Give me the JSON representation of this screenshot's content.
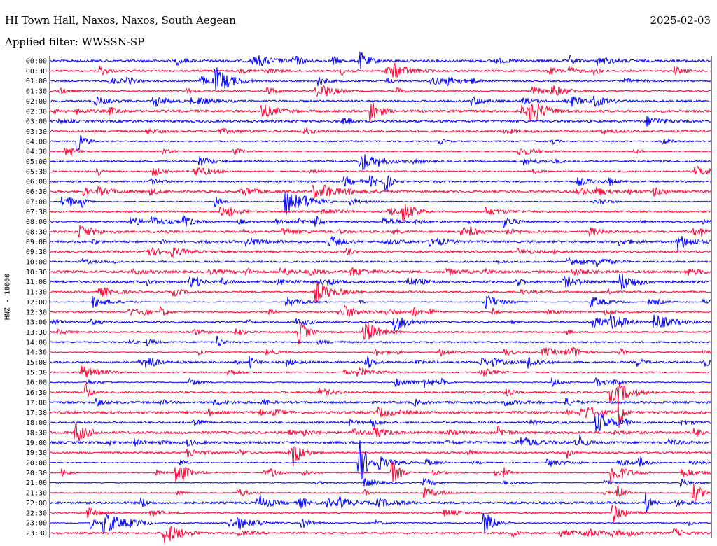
{
  "header": {
    "title": "HI Town Hall, Naxos, Naxos, South Aegean",
    "date": "2025-02-03",
    "filter": "Applied filter: WWSSN-SP"
  },
  "chart_data": {
    "type": "line",
    "ylabel": "HNZ - 10000",
    "colors": [
      "#0000ff",
      "#ff0033"
    ],
    "rows": [
      "00:00",
      "00:30",
      "01:00",
      "01:30",
      "02:00",
      "02:30",
      "03:00",
      "03:30",
      "04:00",
      "04:30",
      "05:00",
      "05:30",
      "06:00",
      "06:30",
      "07:00",
      "07:30",
      "08:00",
      "08:30",
      "09:00",
      "09:30",
      "10:00",
      "10:30",
      "11:00",
      "11:30",
      "12:00",
      "12:30",
      "13:00",
      "13:30",
      "14:00",
      "14:30",
      "15:00",
      "15:30",
      "16:00",
      "16:30",
      "17:00",
      "17:30",
      "18:00",
      "18:30",
      "19:00",
      "19:30",
      "20:00",
      "20:30",
      "21:00",
      "21:30",
      "22:00",
      "22:30",
      "23:00",
      "23:30"
    ]
  }
}
